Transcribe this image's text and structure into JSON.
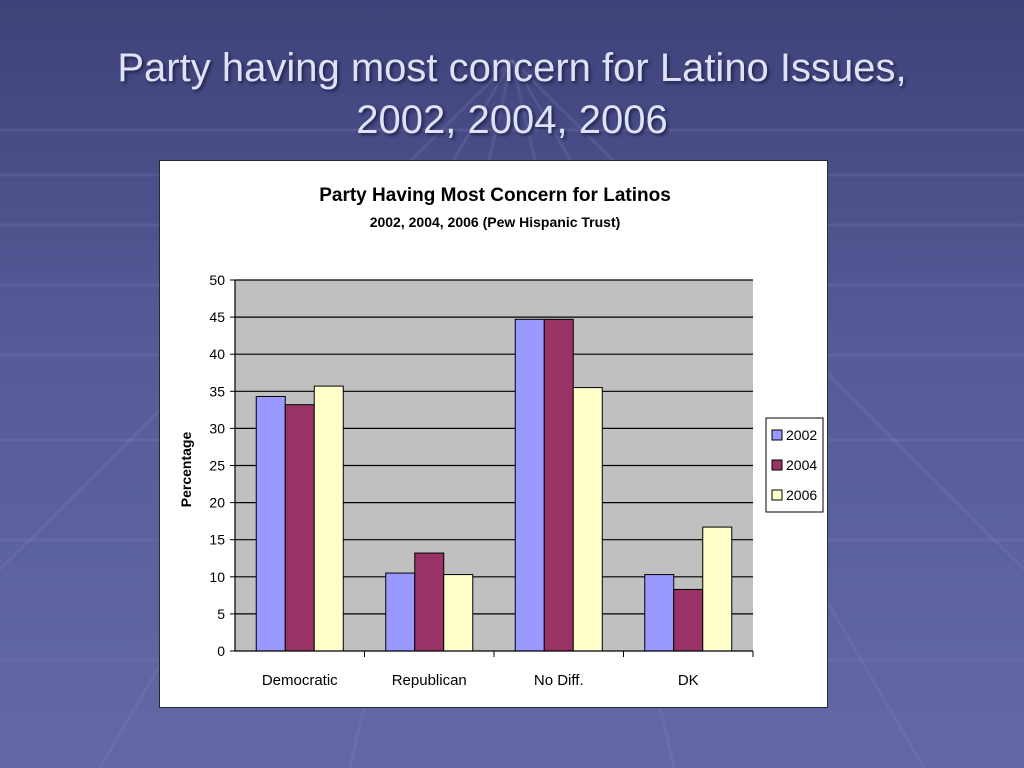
{
  "slide": {
    "title_line1": "Party having most concern for Latino Issues,",
    "title_line2": "2002, 2004, 2006"
  },
  "chart_data": {
    "type": "bar",
    "title": "Party Having Most Concern for Latinos",
    "subtitle": "2002, 2004, 2006 (Pew Hispanic Trust)",
    "xlabel": "",
    "ylabel": "Percentage",
    "categories": [
      "Democratic",
      "Republican",
      "No Diff.",
      "DK"
    ],
    "series": [
      {
        "name": "2002",
        "values": [
          34.3,
          10.5,
          44.7,
          10.3
        ],
        "color": "#9999ff"
      },
      {
        "name": "2004",
        "values": [
          33.2,
          13.2,
          44.7,
          8.3
        ],
        "color": "#993366"
      },
      {
        "name": "2006",
        "values": [
          35.7,
          10.3,
          35.5,
          16.7
        ],
        "color": "#ffffcc"
      }
    ],
    "ylim": [
      0,
      50
    ],
    "yticks": [
      0,
      5,
      10,
      15,
      20,
      25,
      30,
      35,
      40,
      45,
      50
    ],
    "grid": true,
    "plot_background": "#c0c0c0",
    "legend_position": "right"
  }
}
